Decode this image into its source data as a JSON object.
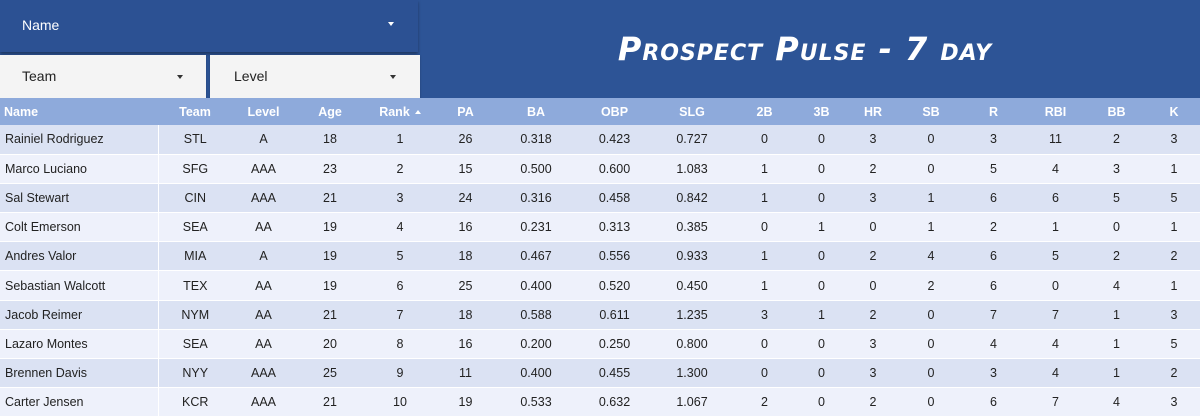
{
  "filters": {
    "name_label": "Name",
    "team_label": "Team",
    "level_label": "Level"
  },
  "title": "Prospect Pulse - 7 day",
  "table": {
    "columns": [
      "Name",
      "Team",
      "Level",
      "Age",
      "Rank",
      "PA",
      "BA",
      "OBP",
      "SLG",
      "2B",
      "3B",
      "HR",
      "SB",
      "R",
      "RBI",
      "BB",
      "K"
    ],
    "sorted_column": "Rank",
    "sort_direction": "ascending",
    "rows": [
      [
        "Rainiel Rodriguez",
        "STL",
        "A",
        "18",
        "1",
        "26",
        "0.318",
        "0.423",
        "0.727",
        "0",
        "0",
        "3",
        "0",
        "3",
        "11",
        "2",
        "3"
      ],
      [
        "Marco Luciano",
        "SFG",
        "AAA",
        "23",
        "2",
        "15",
        "0.500",
        "0.600",
        "1.083",
        "1",
        "0",
        "2",
        "0",
        "5",
        "4",
        "3",
        "1"
      ],
      [
        "Sal Stewart",
        "CIN",
        "AAA",
        "21",
        "3",
        "24",
        "0.316",
        "0.458",
        "0.842",
        "1",
        "0",
        "3",
        "1",
        "6",
        "6",
        "5",
        "5"
      ],
      [
        "Colt Emerson",
        "SEA",
        "AA",
        "19",
        "4",
        "16",
        "0.231",
        "0.313",
        "0.385",
        "0",
        "1",
        "0",
        "1",
        "2",
        "1",
        "0",
        "1"
      ],
      [
        "Andres Valor",
        "MIA",
        "A",
        "19",
        "5",
        "18",
        "0.467",
        "0.556",
        "0.933",
        "1",
        "0",
        "2",
        "4",
        "6",
        "5",
        "2",
        "2"
      ],
      [
        "Sebastian Walcott",
        "TEX",
        "AA",
        "19",
        "6",
        "25",
        "0.400",
        "0.520",
        "0.450",
        "1",
        "0",
        "0",
        "2",
        "6",
        "0",
        "4",
        "1"
      ],
      [
        "Jacob Reimer",
        "NYM",
        "AA",
        "21",
        "7",
        "18",
        "0.588",
        "0.611",
        "1.235",
        "3",
        "1",
        "2",
        "0",
        "7",
        "7",
        "1",
        "3"
      ],
      [
        "Lazaro Montes",
        "SEA",
        "AA",
        "20",
        "8",
        "16",
        "0.200",
        "0.250",
        "0.800",
        "0",
        "0",
        "3",
        "0",
        "4",
        "4",
        "1",
        "5"
      ],
      [
        "Brennen Davis",
        "NYY",
        "AAA",
        "25",
        "9",
        "11",
        "0.400",
        "0.455",
        "1.300",
        "0",
        "0",
        "3",
        "0",
        "3",
        "4",
        "1",
        "2"
      ],
      [
        "Carter Jensen",
        "KCR",
        "AAA",
        "21",
        "10",
        "19",
        "0.533",
        "0.632",
        "1.067",
        "2",
        "0",
        "2",
        "0",
        "6",
        "7",
        "4",
        "3"
      ]
    ]
  },
  "colors": {
    "header_bg": "#2d5496",
    "table_header_bg": "#8eaadb",
    "row_odd_bg": "#dbe2f3",
    "row_even_bg": "#eef1fb"
  },
  "icons": {
    "dropdown": "caret-down-icon",
    "sort": "sort-ascending-icon"
  }
}
